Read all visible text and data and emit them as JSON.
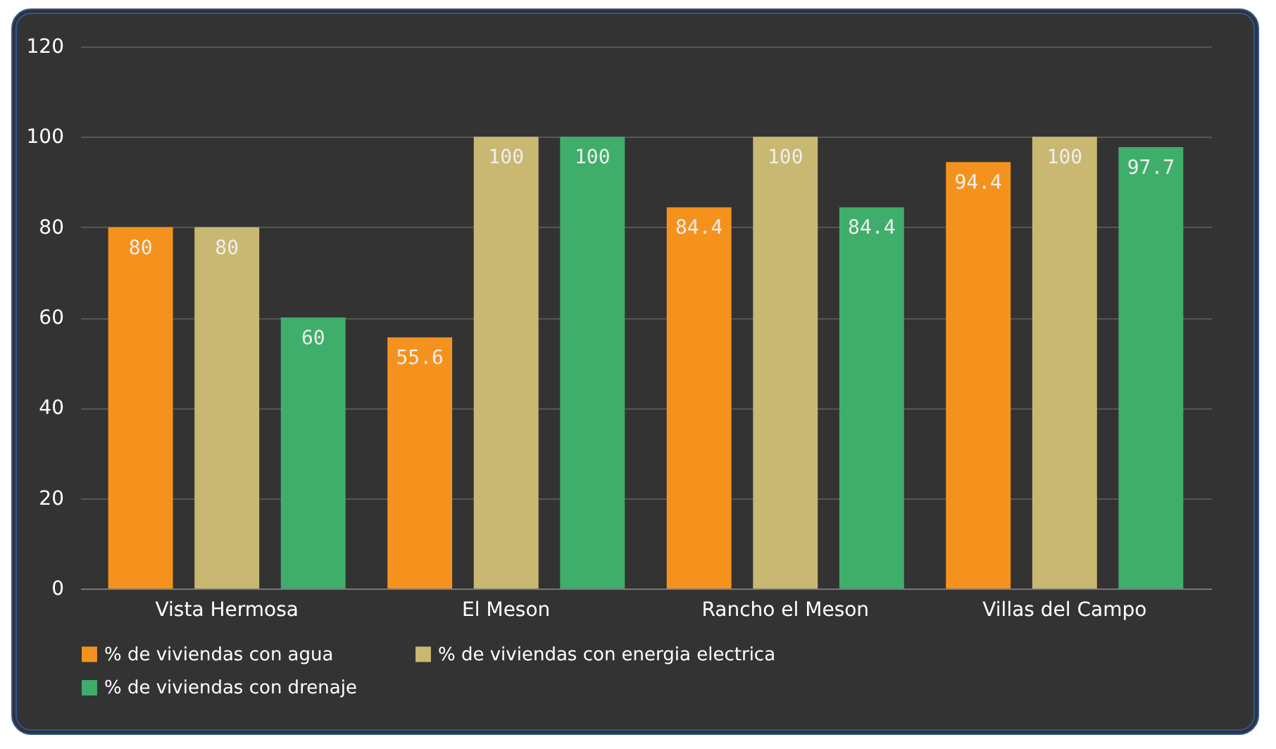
{
  "chart_data": {
    "type": "bar",
    "categories": [
      "Vista Hermosa",
      "El Meson",
      "Rancho el Meson",
      "Villas del Campo"
    ],
    "series": [
      {
        "name": "% de viviendas con agua",
        "color": "#f5921e",
        "values": [
          80,
          55.6,
          84.4,
          94.4
        ]
      },
      {
        "name": "% de viviendas con energia electrica",
        "color": "#c9b872",
        "values": [
          80,
          100,
          100,
          100
        ]
      },
      {
        "name": "% de viviendas con drenaje",
        "color": "#3fae6a",
        "values": [
          60,
          100,
          84.4,
          97.7
        ]
      }
    ],
    "ylim": [
      0,
      120
    ],
    "yticks": [
      0,
      20,
      40,
      60,
      80,
      100,
      120
    ],
    "grid": "y",
    "legend": "bottom",
    "data_labels": true
  }
}
